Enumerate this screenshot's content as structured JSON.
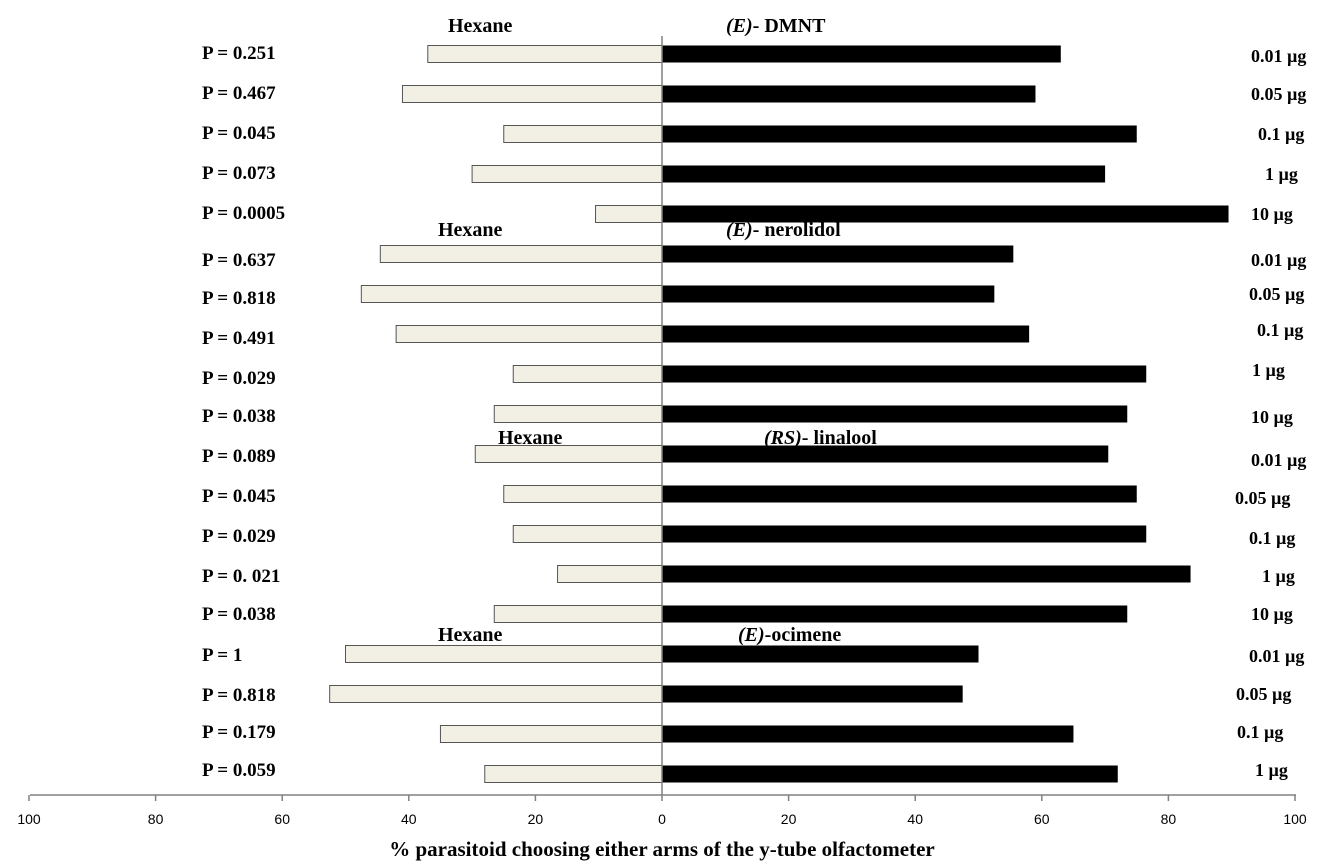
{
  "chart_data": {
    "type": "bar",
    "orientation": "horizontal-diverging",
    "xlabel": "% parasitoid choosing either arms of the y-tube olfactometer",
    "xlim": [
      -100,
      100
    ],
    "x_tick_labels": [
      "100",
      "80",
      "60",
      "40",
      "20",
      "0",
      "20",
      "40",
      "60",
      "80",
      "100"
    ],
    "colors": {
      "hexane": "#f2f0e4",
      "compound": "#000000",
      "axis": "#808080"
    },
    "groups": [
      {
        "control": "Hexane",
        "compound_prefix": "(E)",
        "compound_suffix": "- DMNT",
        "prefix_style": "bold-italic",
        "rows": [
          {
            "p": "P = 0.251",
            "dose": "0.01 µg",
            "hexane": 37,
            "compound": 63
          },
          {
            "p": "P = 0.467",
            "dose": "0.05 µg",
            "hexane": 41,
            "compound": 59
          },
          {
            "p": "P = 0.045",
            "dose": "0.1 µg",
            "hexane": 25,
            "compound": 75
          },
          {
            "p": "P = 0.073",
            "dose": "1 µg",
            "hexane": 30,
            "compound": 70
          },
          {
            "p": "P = 0.0005",
            "dose": "10 µg",
            "hexane": 10.5,
            "compound": 89.5
          }
        ]
      },
      {
        "control": "Hexane",
        "compound_prefix": "(E)",
        "compound_suffix": "- nerolidol",
        "prefix_style": "bold-italic",
        "rows": [
          {
            "p": "P = 0.637",
            "dose": "0.01 µg",
            "hexane": 44.5,
            "compound": 55.5
          },
          {
            "p": "P = 0.818",
            "dose": "0.05 µg",
            "hexane": 47.5,
            "compound": 52.5
          },
          {
            "p": "P = 0.491",
            "dose": "0.1 µg",
            "hexane": 42,
            "compound": 58
          },
          {
            "p": "P = 0.029",
            "dose": "1 µg",
            "hexane": 23.5,
            "compound": 76.5
          },
          {
            "p": "P = 0.038",
            "dose": "10 µg",
            "hexane": 26.5,
            "compound": 73.5
          }
        ]
      },
      {
        "control": "Hexane",
        "compound_prefix": "(RS)",
        "compound_suffix": "- linalool",
        "prefix_style": "bold-italic",
        "rows": [
          {
            "p": "P = 0.089",
            "dose": "0.01 µg",
            "hexane": 29.5,
            "compound": 70.5
          },
          {
            "p": "P = 0.045",
            "dose": "0.05 µg",
            "hexane": 25,
            "compound": 75
          },
          {
            "p": "P = 0.029",
            "dose": "0.1 µg",
            "hexane": 23.5,
            "compound": 76.5
          },
          {
            "p": "P = 0. 021",
            "dose": "1 µg",
            "hexane": 16.5,
            "compound": 83.5
          },
          {
            "p": "P = 0.038",
            "dose": "10 µg",
            "hexane": 26.5,
            "compound": 73.5
          }
        ]
      },
      {
        "control": "Hexane",
        "compound_prefix": "(E)",
        "compound_suffix": "-ocimene",
        "prefix_style": "bold-italic",
        "rows": [
          {
            "p": "P = 1",
            "dose": "0.01 µg",
            "hexane": 50,
            "compound": 50
          },
          {
            "p": "P = 0.818",
            "dose": "0.05 µg",
            "hexane": 52.5,
            "compound": 47.5
          },
          {
            "p": "P = 0.179",
            "dose": "0.1 µg",
            "hexane": 35,
            "compound": 65
          },
          {
            "p": "P = 0.059",
            "dose": "1 µg",
            "hexane": 28,
            "compound": 72
          }
        ]
      }
    ]
  }
}
